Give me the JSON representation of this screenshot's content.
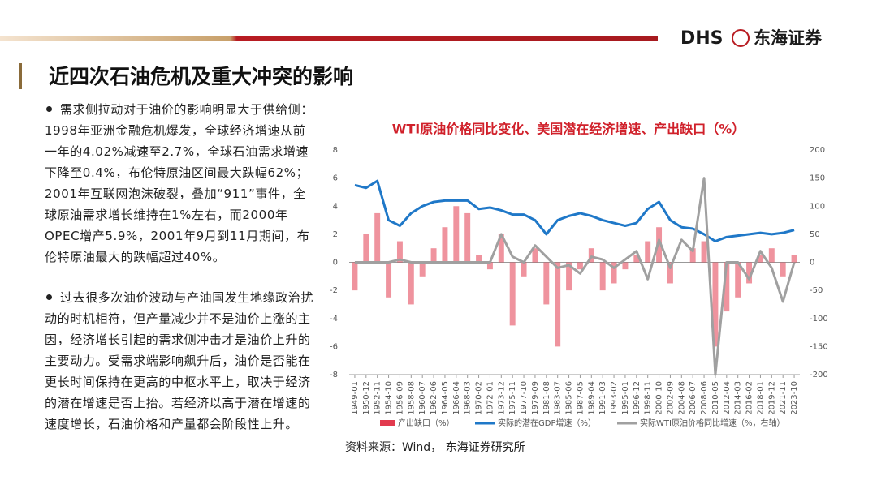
{
  "header": {
    "logo_en": "DHS",
    "logo_cn": "东海证券",
    "title": "近四次石油危机及重大冲突的影响"
  },
  "bullets": [
    "需求侧拉动对于油价的影响明显大于供给侧：1998年亚洲金融危机爆发，全球经济增速从前一年的4.02%减速至2.7%，全球石油需求增速下降至0.4%，布伦特原油区间最大跌幅62%；2001年互联网泡沫破裂，叠加“911”事件，全球原油需求增长维持在1%左右，而2000年OPEC增产5.9%，2001年9月到11月期间，布伦特原油最大的跌幅超过40%。",
    "过去很多次油价波动与产油国发生地缘政治扰动的时机相符，但产量减少并不是油价上涨的主因，经济增长引起的需求侧冲击才是油价上升的主要动力。受需求端影响飙升后，油价是否能在更长时间保持在更高的中枢水平上，取决于经济的潜在增速是否上抬。若经济以高于潜在增速的速度增长，石油价格和产量都会阶段性上升。"
  ],
  "chart_data": {
    "type": "combo",
    "title": "WTI原油价格同比变化、美国潜在经济增速、产出缺口（%）",
    "source": "资料来源：Wind， 东海证券研究所",
    "categories": [
      "1949-01",
      "1950-12",
      "1952-11",
      "1954-10",
      "1956-09",
      "1958-08",
      "1960-07",
      "1962-06",
      "1964-05",
      "1966-04",
      "1968-03",
      "1970-02",
      "1972-01",
      "1973-12",
      "1975-11",
      "1977-10",
      "1979-09",
      "1981-08",
      "1983-07",
      "1985-06",
      "1987-05",
      "1989-04",
      "1991-03",
      "1993-02",
      "1995-01",
      "1996-12",
      "1998-11",
      "2000-10",
      "2002-09",
      "2004-08",
      "2006-07",
      "2008-06",
      "2010-05",
      "2012-04",
      "2014-03",
      "2016-02",
      "2018-01",
      "2019-12",
      "2021-11",
      "2023-10"
    ],
    "series": [
      {
        "name": "产出缺口（%）",
        "type": "bar",
        "color": "#e23a4e",
        "values": [
          -2,
          2,
          3.5,
          -2.5,
          1.5,
          -3,
          -1,
          1,
          2.5,
          4,
          3.5,
          0.5,
          -0.5,
          2,
          -4.5,
          -1,
          1,
          -3,
          -6,
          -2,
          -0.5,
          1,
          -2,
          -1.5,
          -0.5,
          0.5,
          1.5,
          2.5,
          -1.5,
          0,
          1,
          1.5,
          -6,
          -3.5,
          -2.5,
          -1.5,
          0.5,
          1,
          -1,
          0.5
        ]
      },
      {
        "name": "实际的潜在GDP增速（%）",
        "type": "line",
        "color": "#1f78c8",
        "values": [
          5.5,
          5.3,
          5.8,
          3.0,
          2.6,
          3.5,
          4.0,
          4.3,
          4.4,
          4.4,
          4.4,
          3.8,
          3.9,
          3.7,
          3.4,
          3.4,
          3.0,
          2.0,
          3.0,
          3.3,
          3.5,
          3.3,
          3.0,
          2.8,
          2.6,
          2.8,
          3.8,
          4.3,
          3.0,
          2.5,
          2.4,
          2.0,
          1.5,
          1.8,
          1.9,
          2.0,
          2.1,
          2.0,
          2.1,
          2.3
        ]
      },
      {
        "name": "实际WTI原油价格同比增速（%，右轴）",
        "type": "line",
        "axis": "y2",
        "color": "#a0a0a0",
        "values": [
          0,
          0,
          0,
          0,
          5,
          0,
          0,
          0,
          0,
          0,
          0,
          0,
          0,
          50,
          10,
          0,
          30,
          10,
          -10,
          -5,
          -20,
          10,
          5,
          -10,
          5,
          20,
          -30,
          40,
          -10,
          40,
          20,
          150,
          -200,
          0,
          0,
          -30,
          20,
          -10,
          -70,
          0
        ]
      }
    ],
    "ylim": [
      -8,
      8
    ],
    "yticks": [
      -8,
      -6,
      -4,
      -2,
      0,
      2,
      4,
      6,
      8
    ],
    "y2lim": [
      -200,
      200
    ],
    "y2ticks": [
      -200,
      -150,
      -100,
      -50,
      0,
      50,
      100,
      150,
      200
    ]
  }
}
